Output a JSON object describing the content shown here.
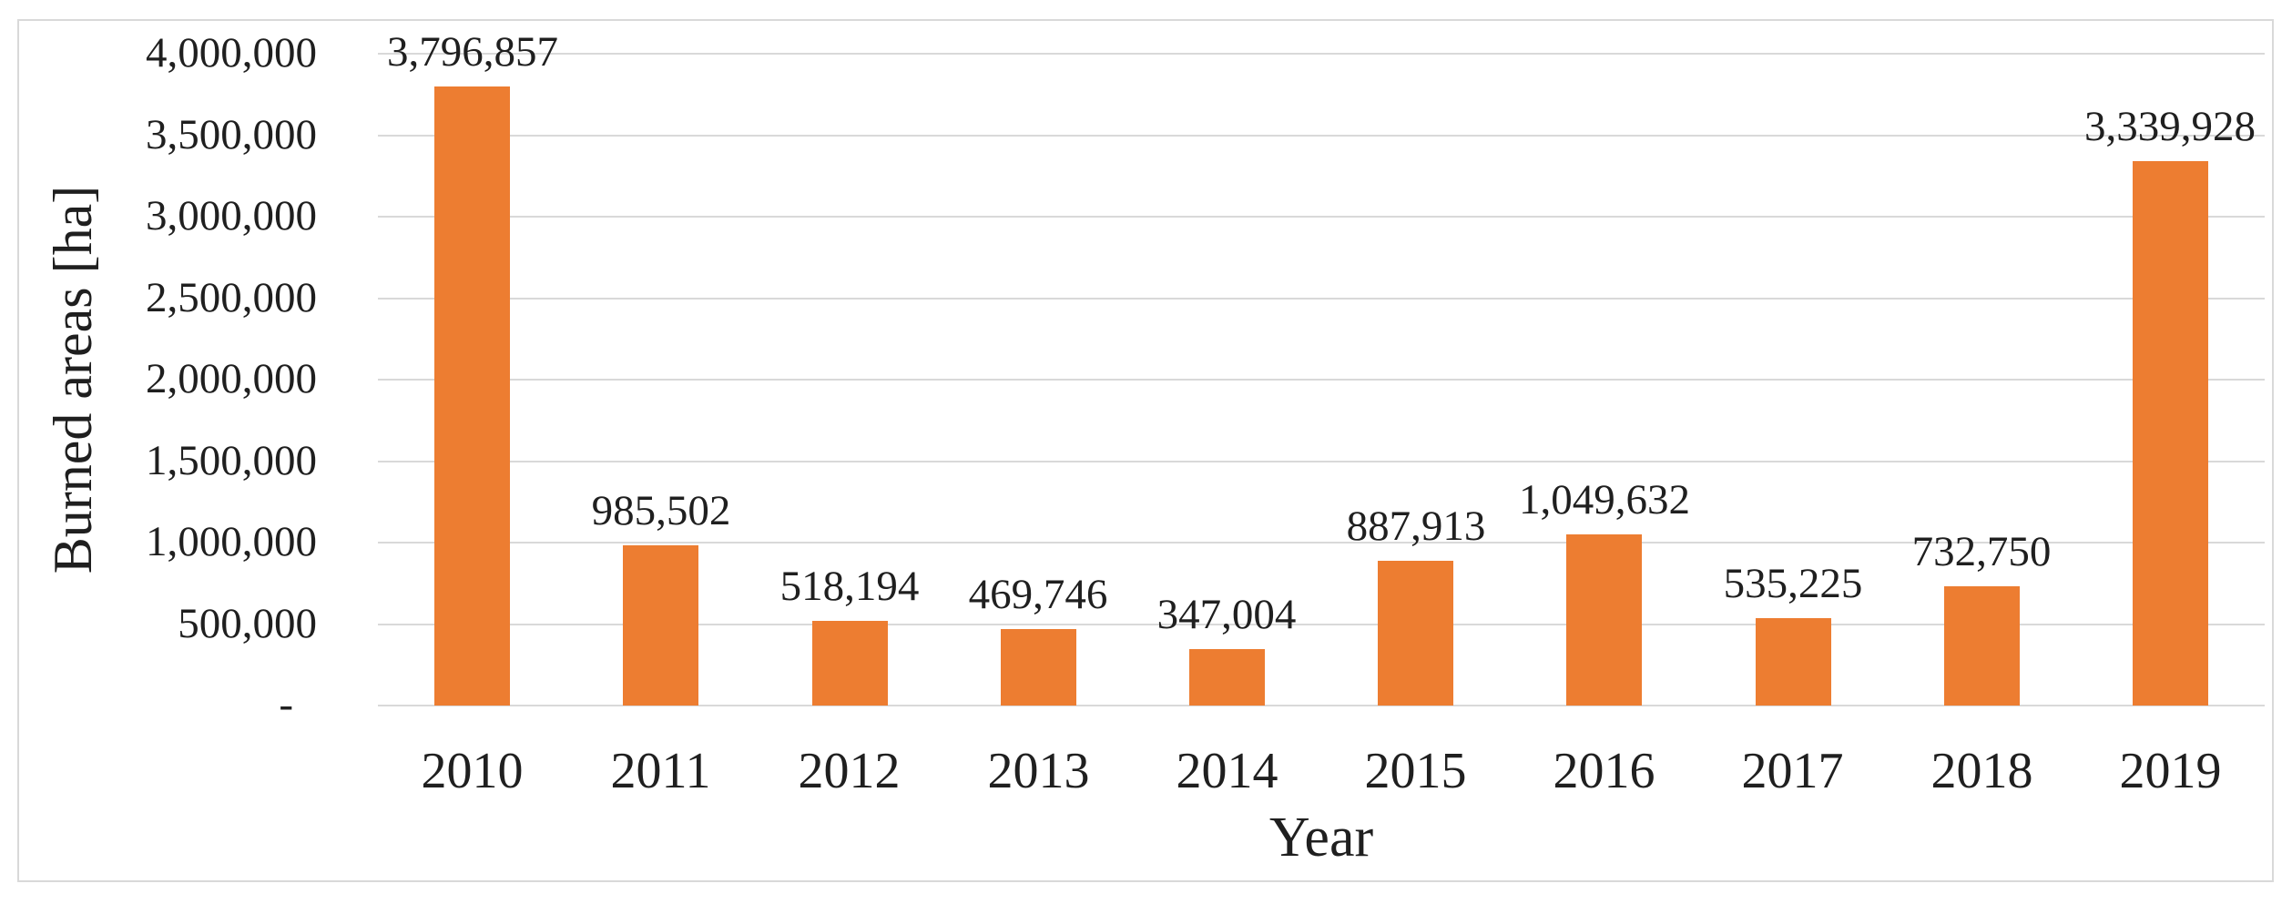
{
  "chart_data": {
    "type": "bar",
    "title": "",
    "xlabel": "Year",
    "ylabel": "Burned areas [ha]",
    "categories": [
      "2010",
      "2011",
      "2012",
      "2013",
      "2014",
      "2015",
      "2016",
      "2017",
      "2018",
      "2019"
    ],
    "values": [
      3796857,
      985502,
      518194,
      469746,
      347004,
      887913,
      1049632,
      535225,
      732750,
      3339928
    ],
    "data_labels": [
      "3,796,857",
      "985,502",
      "518,194",
      "469,746",
      "347,004",
      "887,913",
      "1,049,632",
      "535,225",
      "732,750",
      "3,339,928"
    ],
    "ylim": [
      0,
      4000000
    ],
    "ytick_step": 500000,
    "ytick_labels": [
      "-",
      "500,000",
      "1,000,000",
      "1,500,000",
      "2,000,000",
      "2,500,000",
      "3,000,000",
      "3,500,000",
      "4,000,000"
    ],
    "grid": true,
    "legend": false,
    "bar_color": "#ED7D31",
    "gridline_color": "#D9D9D9",
    "border_color": "#D9D9D9",
    "text_color": "#1f1f1f"
  }
}
